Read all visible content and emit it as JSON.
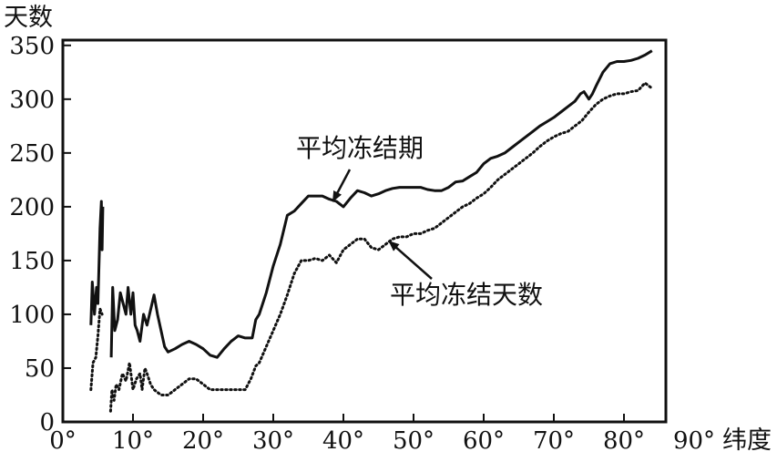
{
  "chart_data": {
    "type": "line",
    "ylabel": "天数",
    "xlabel": "纬度",
    "xlim": [
      0,
      90
    ],
    "ylim": [
      0,
      360
    ],
    "x_ticks": [
      0,
      10,
      20,
      30,
      40,
      50,
      60,
      70,
      80,
      90
    ],
    "x_tick_labels": [
      "0°",
      "10°",
      "20°",
      "30°",
      "40°",
      "50°",
      "60°",
      "70°",
      "80°",
      "90°"
    ],
    "y_ticks": [
      0,
      50,
      100,
      150,
      200,
      250,
      300,
      350
    ],
    "y_tick_labels": [
      "0",
      "50",
      "100",
      "150",
      "200",
      "250",
      "300",
      "350"
    ],
    "grid": false,
    "series": [
      {
        "name": "平均冻结期",
        "style": "solid",
        "color": "#111111",
        "points": [
          [
            4.0,
            90
          ],
          [
            4.2,
            130
          ],
          [
            4.5,
            100
          ],
          [
            4.8,
            125
          ],
          [
            5.0,
            110
          ],
          [
            5.3,
            180
          ],
          [
            5.5,
            205
          ],
          [
            5.6,
            160
          ],
          [
            5.7,
            200
          ],
          [
            6.9,
            60
          ],
          [
            7.1,
            125
          ],
          [
            7.4,
            85
          ],
          [
            7.8,
            95
          ],
          [
            8.2,
            120
          ],
          [
            8.6,
            110
          ],
          [
            9.0,
            100
          ],
          [
            9.3,
            125
          ],
          [
            9.7,
            100
          ],
          [
            10.0,
            120
          ],
          [
            10.3,
            90
          ],
          [
            10.6,
            85
          ],
          [
            11.0,
            75
          ],
          [
            11.5,
            100
          ],
          [
            12.0,
            90
          ],
          [
            13.0,
            118
          ],
          [
            13.5,
            100
          ],
          [
            14.0,
            85
          ],
          [
            14.5,
            70
          ],
          [
            15.0,
            65
          ],
          [
            16.0,
            68
          ],
          [
            17.0,
            72
          ],
          [
            18.0,
            75
          ],
          [
            19.0,
            72
          ],
          [
            20.0,
            68
          ],
          [
            21.0,
            62
          ],
          [
            22.0,
            60
          ],
          [
            23.0,
            68
          ],
          [
            24.0,
            75
          ],
          [
            25.0,
            80
          ],
          [
            26.0,
            78
          ],
          [
            27.0,
            78
          ],
          [
            27.5,
            95
          ],
          [
            28.0,
            100
          ],
          [
            29.0,
            120
          ],
          [
            30.0,
            145
          ],
          [
            31.0,
            165
          ],
          [
            32.0,
            192
          ],
          [
            33.0,
            196
          ],
          [
            34.0,
            203
          ],
          [
            35.0,
            210
          ],
          [
            36.0,
            210
          ],
          [
            37.0,
            210
          ],
          [
            38.0,
            207
          ],
          [
            39.0,
            205
          ],
          [
            40.0,
            200
          ],
          [
            41.0,
            208
          ],
          [
            42.0,
            215
          ],
          [
            43.0,
            213
          ],
          [
            44.0,
            210
          ],
          [
            45.0,
            212
          ],
          [
            46.0,
            215
          ],
          [
            47.0,
            217
          ],
          [
            48.0,
            218
          ],
          [
            49.0,
            218
          ],
          [
            50.0,
            218
          ],
          [
            51.0,
            218
          ],
          [
            52.0,
            216
          ],
          [
            53.0,
            215
          ],
          [
            54.0,
            215
          ],
          [
            55.0,
            218
          ],
          [
            56.0,
            223
          ],
          [
            57.0,
            224
          ],
          [
            58.0,
            228
          ],
          [
            59.0,
            232
          ],
          [
            60.0,
            240
          ],
          [
            61.0,
            245
          ],
          [
            62.0,
            247
          ],
          [
            63.0,
            250
          ],
          [
            64.0,
            255
          ],
          [
            65.0,
            260
          ],
          [
            66.0,
            265
          ],
          [
            67.0,
            270
          ],
          [
            68.0,
            275
          ],
          [
            69.0,
            279
          ],
          [
            70.0,
            283
          ],
          [
            71.0,
            288
          ],
          [
            72.0,
            293
          ],
          [
            73.0,
            298
          ],
          [
            73.8,
            305
          ],
          [
            74.3,
            307
          ],
          [
            75.0,
            300
          ],
          [
            75.5,
            305
          ],
          [
            76.0,
            312
          ],
          [
            77.0,
            325
          ],
          [
            78.0,
            333
          ],
          [
            79.0,
            335
          ],
          [
            80.0,
            335
          ],
          [
            81.0,
            336
          ],
          [
            82.0,
            338
          ],
          [
            83.0,
            341
          ],
          [
            84.0,
            345
          ]
        ]
      },
      {
        "name": "平均冻结天数",
        "style": "dotted",
        "color": "#111111",
        "points": [
          [
            4.0,
            30
          ],
          [
            4.3,
            55
          ],
          [
            4.7,
            60
          ],
          [
            5.0,
            80
          ],
          [
            5.3,
            105
          ],
          [
            5.6,
            100
          ],
          [
            6.8,
            10
          ],
          [
            7.0,
            30
          ],
          [
            7.3,
            20
          ],
          [
            7.6,
            35
          ],
          [
            8.0,
            30
          ],
          [
            8.5,
            45
          ],
          [
            9.0,
            38
          ],
          [
            9.5,
            55
          ],
          [
            10.0,
            30
          ],
          [
            10.5,
            40
          ],
          [
            11.0,
            45
          ],
          [
            11.3,
            30
          ],
          [
            11.7,
            50
          ],
          [
            12.0,
            45
          ],
          [
            12.5,
            35
          ],
          [
            13.0,
            30
          ],
          [
            14.0,
            25
          ],
          [
            15.0,
            25
          ],
          [
            16.0,
            30
          ],
          [
            17.0,
            35
          ],
          [
            18.0,
            40
          ],
          [
            19.0,
            40
          ],
          [
            20.0,
            35
          ],
          [
            21.0,
            30
          ],
          [
            22.0,
            30
          ],
          [
            23.0,
            30
          ],
          [
            24.0,
            30
          ],
          [
            25.0,
            30
          ],
          [
            26.0,
            30
          ],
          [
            26.8,
            40
          ],
          [
            27.5,
            52
          ],
          [
            28.0,
            55
          ],
          [
            29.0,
            70
          ],
          [
            30.0,
            85
          ],
          [
            31.0,
            100
          ],
          [
            32.0,
            118
          ],
          [
            33.0,
            138
          ],
          [
            34.0,
            150
          ],
          [
            35.0,
            150
          ],
          [
            36.0,
            152
          ],
          [
            37.0,
            150
          ],
          [
            38.0,
            155
          ],
          [
            39.0,
            148
          ],
          [
            40.0,
            160
          ],
          [
            41.0,
            165
          ],
          [
            42.0,
            170
          ],
          [
            43.0,
            170
          ],
          [
            44.0,
            162
          ],
          [
            45.0,
            160
          ],
          [
            46.0,
            165
          ],
          [
            47.0,
            170
          ],
          [
            48.0,
            172
          ],
          [
            49.0,
            172
          ],
          [
            50.0,
            175
          ],
          [
            51.0,
            175
          ],
          [
            52.0,
            178
          ],
          [
            53.0,
            180
          ],
          [
            54.0,
            185
          ],
          [
            55.0,
            190
          ],
          [
            56.0,
            195
          ],
          [
            57.0,
            200
          ],
          [
            58.0,
            203
          ],
          [
            59.0,
            208
          ],
          [
            60.0,
            212
          ],
          [
            61.0,
            218
          ],
          [
            62.0,
            225
          ],
          [
            63.0,
            230
          ],
          [
            64.0,
            235
          ],
          [
            65.0,
            240
          ],
          [
            66.0,
            245
          ],
          [
            67.0,
            250
          ],
          [
            68.0,
            256
          ],
          [
            69.0,
            261
          ],
          [
            70.0,
            265
          ],
          [
            71.0,
            268
          ],
          [
            72.0,
            270
          ],
          [
            73.0,
            275
          ],
          [
            74.0,
            280
          ],
          [
            75.0,
            288
          ],
          [
            76.0,
            295
          ],
          [
            77.0,
            300
          ],
          [
            78.0,
            303
          ],
          [
            79.0,
            305
          ],
          [
            80.0,
            305
          ],
          [
            81.0,
            307
          ],
          [
            82.0,
            308
          ],
          [
            83.0,
            315
          ],
          [
            84.0,
            310
          ]
        ]
      }
    ],
    "annotations": [
      {
        "text": "平均冻结期",
        "series": "平均冻结期",
        "arrow_to": [
          38.5,
          205
        ]
      },
      {
        "text": "平均冻结天数",
        "series": "平均冻结天数",
        "arrow_to": [
          46.5,
          168
        ]
      }
    ]
  }
}
